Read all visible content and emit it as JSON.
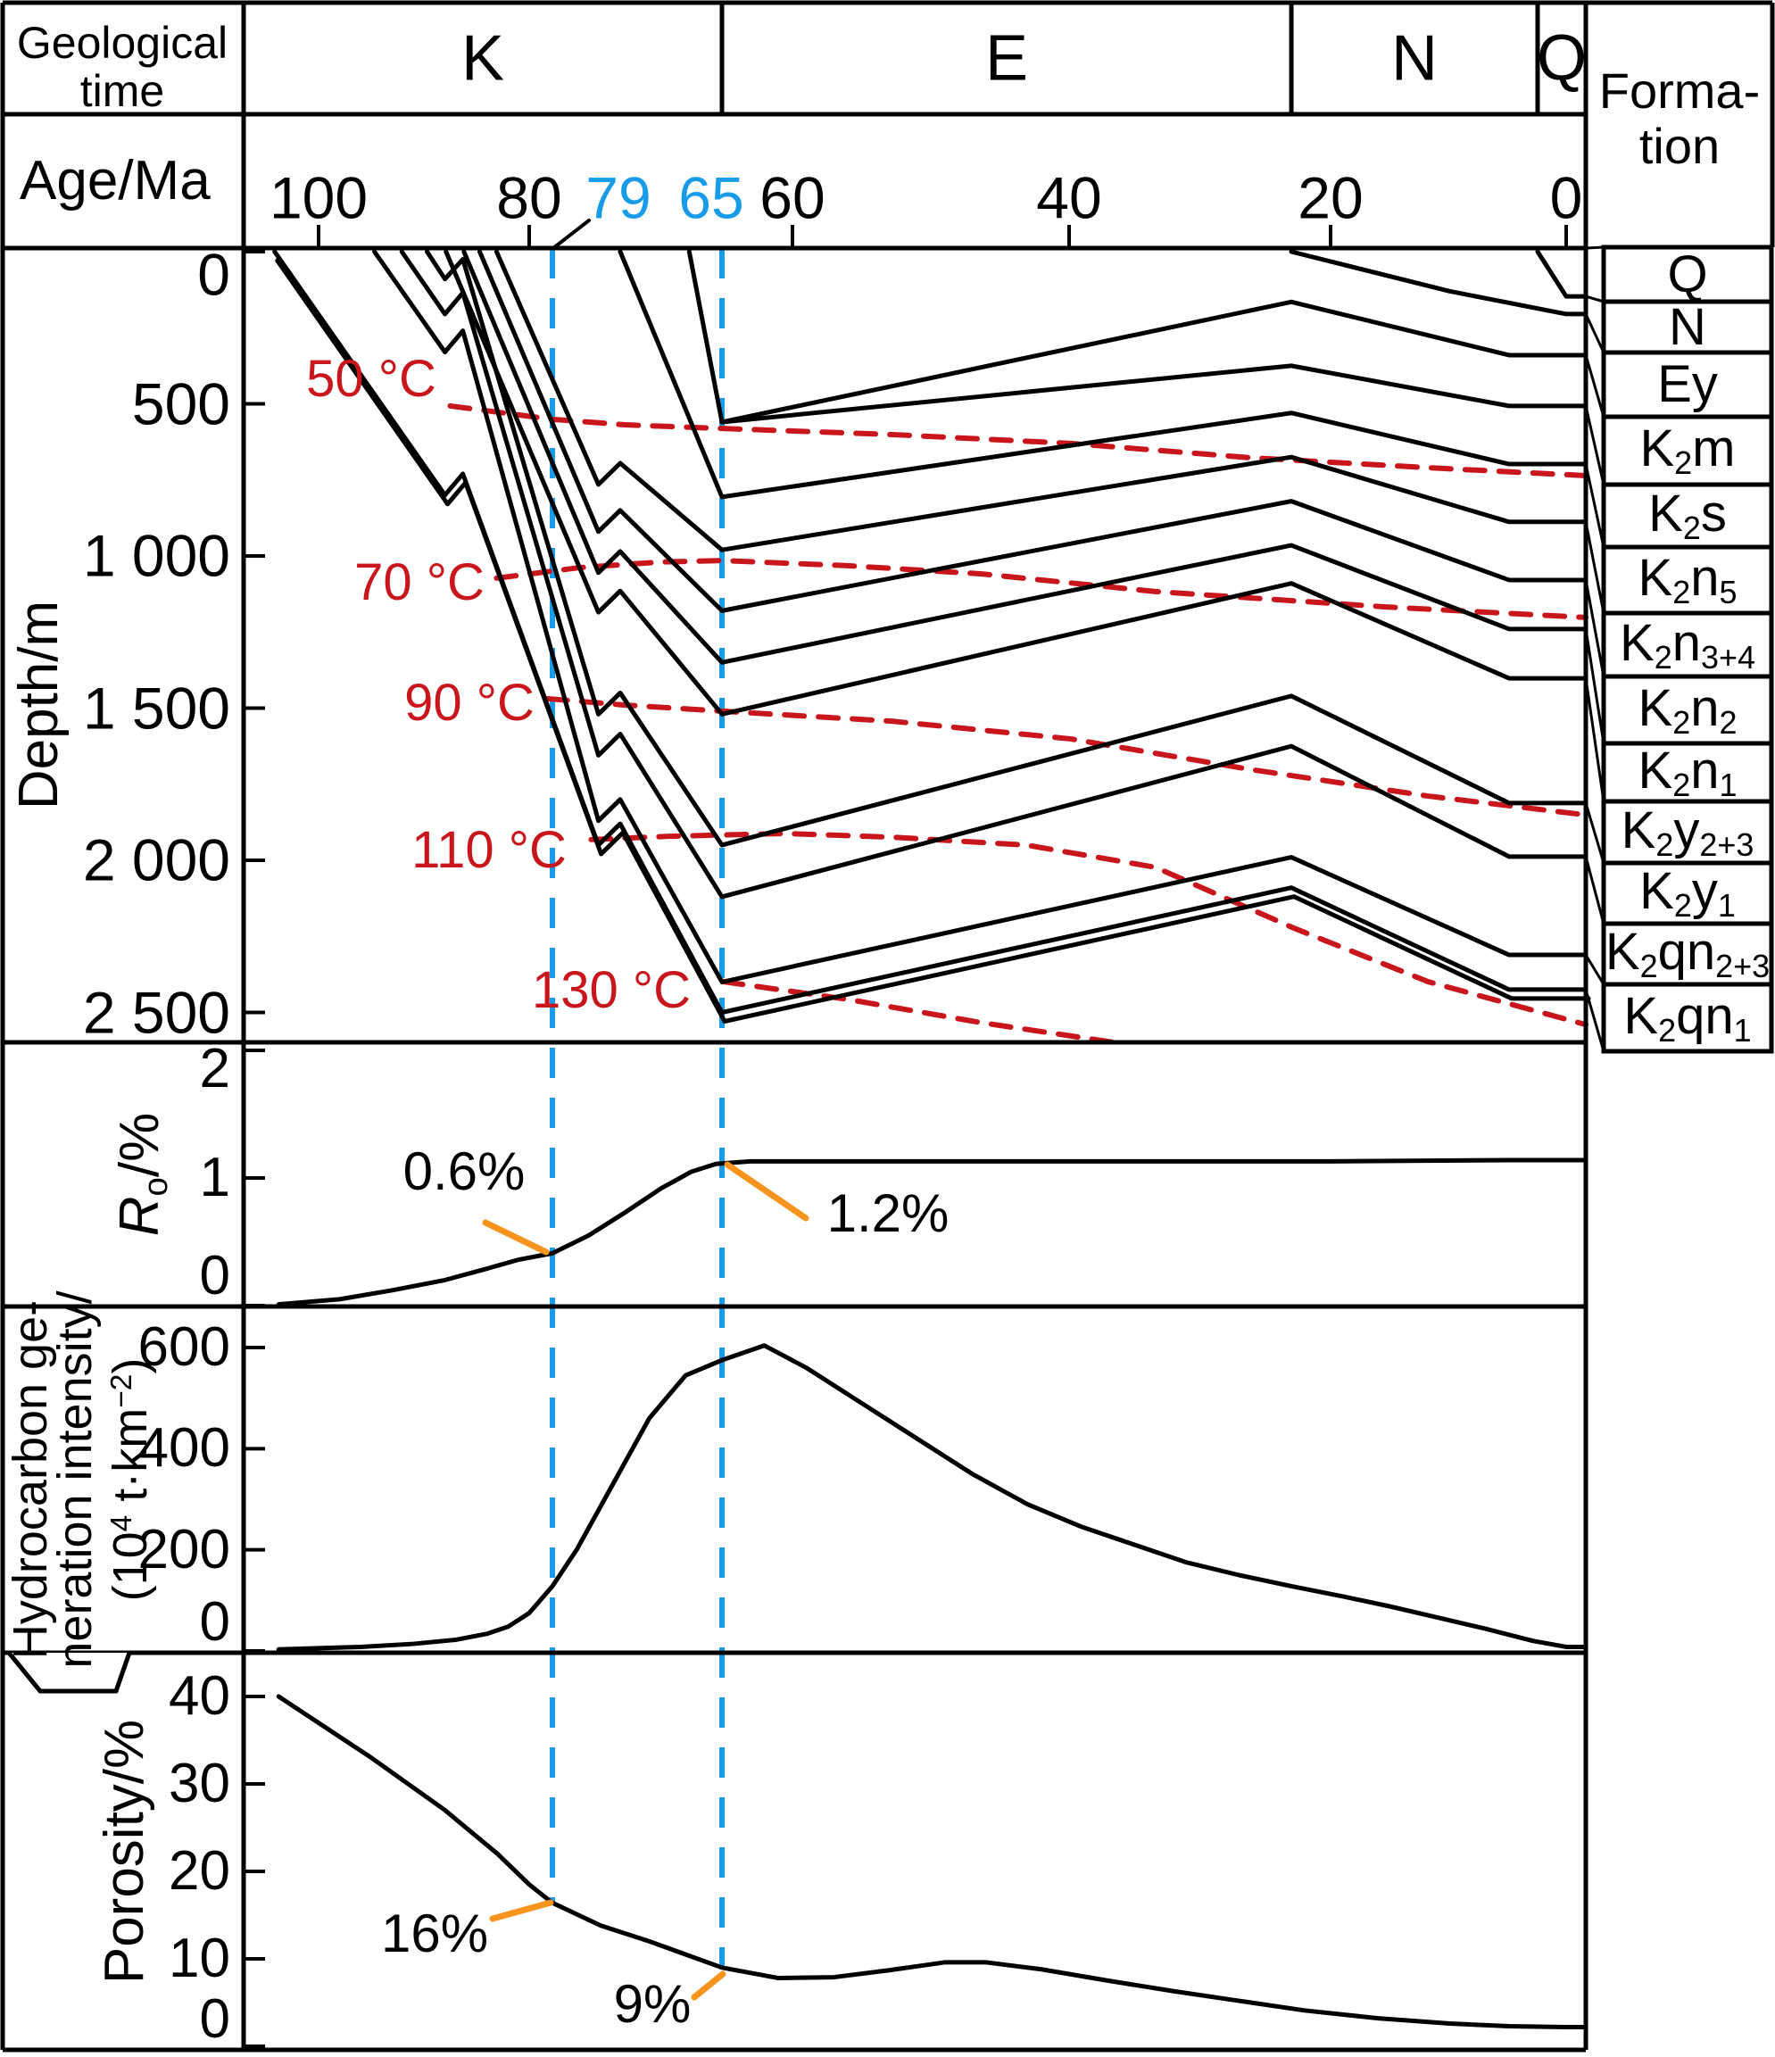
{
  "colors": {
    "blue": "#189CE9",
    "red": "#C9161D",
    "orange": "#F7941E",
    "black": "#000000"
  },
  "header": {
    "geological_time_line1": "Geological",
    "geological_time_line2": "time",
    "age_label": "Age/Ma",
    "formation_line1": "Forma-",
    "formation_line2": "tion",
    "periods": [
      {
        "label": "K",
        "start_age": 107.5,
        "end_age": 65
      },
      {
        "label": "E",
        "start_age": 65,
        "end_age": 23
      },
      {
        "label": "N",
        "start_age": 23,
        "end_age": 2.6
      },
      {
        "label": "Q",
        "start_age": 2.6,
        "end_age": -1.5
      }
    ]
  },
  "chart_data": {
    "type": "line",
    "age_axis": {
      "label": "Age/Ma",
      "ticks": [
        100,
        80,
        60,
        40,
        20,
        0
      ],
      "range": [
        107.5,
        -1.5
      ]
    },
    "event_markers": [
      {
        "age": 79,
        "label": "79",
        "line_bottom_y": 2132,
        "pointer": [
          [
            660,
            247
          ],
          [
            620,
            278
          ]
        ]
      },
      {
        "age": 65,
        "label": "65",
        "line_bottom_y": 2205,
        "pointer": null
      }
    ],
    "burial_panel": {
      "y_label": "Depth/m",
      "depth_ticks": [
        0,
        500,
        1000,
        1500,
        2000,
        2500
      ],
      "depth_tick_labels": [
        "0",
        "500",
        "1 000",
        "1 500",
        "2 000",
        "2 500"
      ],
      "formations": [
        {
          "name": "Q",
          "label_runs": [
            "Q"
          ],
          "base_curve": [
            [
              2.6,
              0
            ],
            [
              0,
              147
            ]
          ]
        },
        {
          "name": "N",
          "label_runs": [
            "N"
          ],
          "base_curve": [
            [
              23,
              0
            ],
            [
              10,
              130
            ],
            [
              0,
              205
            ]
          ]
        },
        {
          "name": "Ey",
          "label_runs": [
            "Ey"
          ],
          "base_curve": [
            [
              65,
              560
            ],
            [
              23,
              165
            ],
            [
              5,
              340
            ],
            [
              0,
              340
            ]
          ]
        },
        {
          "name": "K2m",
          "label_runs": [
            "K",
            {
              "sub": "2"
            },
            "m"
          ],
          "base_curve": [
            [
              67.7,
              0
            ],
            [
              65,
              560
            ],
            [
              23,
              375
            ],
            [
              5,
              507
            ],
            [
              0,
              507
            ]
          ]
        },
        {
          "name": "K2s",
          "label_runs": [
            "K",
            {
              "sub": "2"
            },
            "s"
          ],
          "base_curve": [
            [
              73.4,
              0
            ],
            [
              65,
              806
            ],
            [
              23,
              530
            ],
            [
              5,
              698
            ],
            [
              0,
              698
            ]
          ]
        },
        {
          "name": "K2n5",
          "label_runs": [
            "K",
            {
              "sub": "2"
            },
            "n",
            {
              "sub": "5"
            }
          ],
          "base_curve": [
            [
              83.1,
              0
            ],
            [
              75.2,
              765
            ],
            [
              73.4,
              695
            ],
            [
              65,
              980
            ],
            [
              23,
              675
            ],
            [
              5,
              888
            ],
            [
              0,
              888
            ]
          ]
        },
        {
          "name": "K2n3+4",
          "label_runs": [
            "K",
            {
              "sub": "2"
            },
            "n",
            {
              "sub": "3+4"
            }
          ],
          "base_curve": [
            [
              84.7,
              0
            ],
            [
              75.2,
              920
            ],
            [
              73.4,
              850
            ],
            [
              65,
              1180
            ],
            [
              23,
              820
            ],
            [
              5,
              1079
            ],
            [
              0,
              1079
            ]
          ]
        },
        {
          "name": "K2n2",
          "label_runs": [
            "K",
            {
              "sub": "2"
            },
            "n",
            {
              "sub": "2"
            }
          ],
          "base_curve": [
            [
              86.2,
              0
            ],
            [
              75.2,
              1055
            ],
            [
              73.4,
              985
            ],
            [
              65,
              1350
            ],
            [
              23,
              965
            ],
            [
              5,
              1240
            ],
            [
              0,
              1240
            ]
          ]
        },
        {
          "name": "K2n1",
          "label_runs": [
            "K",
            {
              "sub": "2"
            },
            "n",
            {
              "sub": "1"
            }
          ],
          "base_curve": [
            [
              87.9,
              0
            ],
            [
              75.2,
              1185
            ],
            [
              73.4,
              1115
            ],
            [
              65,
              1520
            ],
            [
              23,
              1090
            ],
            [
              5,
              1402
            ],
            [
              0,
              1402
            ]
          ]
        },
        {
          "name": "K2y2+3",
          "label_runs": [
            "K",
            {
              "sub": "2"
            },
            "y",
            {
              "sub": "2+3"
            }
          ],
          "base_curve": [
            [
              89.7,
              0
            ],
            [
              88,
              90
            ],
            [
              86.3,
              25
            ],
            [
              75.2,
              1520
            ],
            [
              73.4,
              1450
            ],
            [
              65,
              1950
            ],
            [
              23,
              1460
            ],
            [
              5,
              1812
            ],
            [
              0,
              1812
            ]
          ]
        },
        {
          "name": "K2y1",
          "label_runs": [
            "K",
            {
              "sub": "2"
            },
            "y",
            {
              "sub": "1"
            }
          ],
          "base_curve": [
            [
              92.1,
              0
            ],
            [
              88,
              205
            ],
            [
              86.3,
              135
            ],
            [
              75.2,
              1655
            ],
            [
              73.4,
              1585
            ],
            [
              65,
              2120
            ],
            [
              23,
              1625
            ],
            [
              5,
              1988
            ],
            [
              0,
              1988
            ]
          ]
        },
        {
          "name": "K2qn2+3",
          "label_runs": [
            "K",
            {
              "sub": "2"
            },
            "qn",
            {
              "sub": "2+3"
            }
          ],
          "base_curve": [
            [
              94.7,
              0
            ],
            [
              88,
              330
            ],
            [
              86.3,
              260
            ],
            [
              75.2,
              1870
            ],
            [
              73.4,
              1800
            ],
            [
              65,
              2400
            ],
            [
              23,
              1990
            ],
            [
              5,
              2311
            ],
            [
              0,
              2311
            ]
          ]
        },
        {
          "name": "K2qn1",
          "label_runs": [
            "K",
            {
              "sub": "2"
            },
            "qn",
            {
              "sub": "1"
            }
          ],
          "double_line": true,
          "base_curve": [
            [
              104.4,
              0
            ],
            [
              88,
              800
            ],
            [
              86.3,
              730
            ],
            [
              75.2,
              1950
            ],
            [
              73.4,
              1880
            ],
            [
              65,
              2500
            ],
            [
              23,
              2090
            ],
            [
              5,
              2425
            ],
            [
              0,
              2425
            ]
          ]
        }
      ],
      "isotherms": [
        {
          "label": "50 °C",
          "label_center": [
            416,
            425
          ],
          "points": [
            [
              87.5,
              507
            ],
            [
              79,
              551
            ],
            [
              73,
              569
            ],
            [
              65,
              581
            ],
            [
              52.8,
              601
            ],
            [
              39.9,
              630
            ],
            [
              26.2,
              677
            ],
            [
              11.8,
              710
            ],
            [
              -1.5,
              736
            ]
          ]
        },
        {
          "label": "70 °C",
          "label_center": [
            470,
            653
          ],
          "points": [
            [
              83.1,
              1073
            ],
            [
              76.7,
              1038
            ],
            [
              70.1,
              1020
            ],
            [
              65,
              1015
            ],
            [
              56,
              1032
            ],
            [
              46.3,
              1059
            ],
            [
              33.4,
              1117
            ],
            [
              15.5,
              1167
            ],
            [
              -1.5,
              1202
            ]
          ]
        },
        {
          "label": "90 °C",
          "label_center": [
            526,
            788
          ],
          "points": [
            [
              79.2,
              1469
            ],
            [
              73,
              1490
            ],
            [
              65,
              1510
            ],
            [
              52.8,
              1543
            ],
            [
              39.9,
              1601
            ],
            [
              26.2,
              1701
            ],
            [
              11.8,
              1789
            ],
            [
              -1.5,
              1851
            ]
          ]
        },
        {
          "label": "110 °C",
          "label_center": [
            548,
            953
          ],
          "points": [
            [
              75.8,
              1932
            ],
            [
              69.3,
              1921
            ],
            [
              60.5,
              1912
            ],
            [
              52.8,
              1924
            ],
            [
              43.1,
              1950
            ],
            [
              33.4,
              2023
            ],
            [
              22.8,
              2223
            ],
            [
              11.8,
              2399
            ],
            [
              -1.5,
              2540
            ]
          ]
        },
        {
          "label": "130 °C",
          "label_center": [
            685,
            1110
          ],
          "points": [
            [
              64.9,
              2399
            ],
            [
              56,
              2457
            ],
            [
              46.3,
              2534
            ],
            [
              36.6,
              2598
            ]
          ]
        }
      ]
    },
    "ro_panel": {
      "y_label_runs": [
        {
          "i": "R"
        },
        {
          "sub": "o"
        },
        "/%"
      ],
      "ticks": [
        0,
        1,
        2
      ],
      "series": [
        [
          104,
          0.01
        ],
        [
          98,
          0.05
        ],
        [
          93,
          0.12
        ],
        [
          88,
          0.2
        ],
        [
          84,
          0.29
        ],
        [
          81,
          0.36
        ],
        [
          79,
          0.41
        ],
        [
          76,
          0.55
        ],
        [
          73,
          0.73
        ],
        [
          70,
          0.92
        ],
        [
          67.5,
          1.05
        ],
        [
          65.5,
          1.11
        ],
        [
          63,
          1.13
        ],
        [
          40,
          1.13
        ],
        [
          20,
          1.13
        ],
        [
          5,
          1.14
        ],
        [
          0,
          1.14
        ]
      ],
      "annotations": [
        {
          "text": "0.6%",
          "center": [
            520,
            1313
          ],
          "leader": [
            [
              544,
              1370
            ],
            [
              612,
              1403
            ]
          ]
        },
        {
          "text": "1.2%",
          "center": [
            995,
            1360
          ],
          "leader": [
            [
              815,
              1305
            ],
            [
              903,
              1365
            ]
          ]
        }
      ]
    },
    "hc_panel": {
      "y_label_lines": [
        "Hydrocarbon ge-",
        "neration intensity/"
      ],
      "y_unit_runs": [
        "(10",
        {
          "sup": "4"
        },
        " t·km",
        {
          "sup": "−2"
        },
        ")"
      ],
      "ticks": [
        0,
        200,
        400,
        600
      ],
      "series": [
        [
          104,
          3
        ],
        [
          96,
          8
        ],
        [
          91,
          14
        ],
        [
          87,
          22
        ],
        [
          84,
          34
        ],
        [
          82,
          48
        ],
        [
          80,
          75
        ],
        [
          79,
          128
        ],
        [
          77,
          200
        ],
        [
          74,
          330
        ],
        [
          71,
          460
        ],
        [
          68,
          545
        ],
        [
          65,
          575
        ],
        [
          62,
          604
        ],
        [
          59,
          560
        ],
        [
          55,
          490
        ],
        [
          51,
          420
        ],
        [
          47,
          350
        ],
        [
          43,
          290
        ],
        [
          39,
          245
        ],
        [
          35,
          210
        ],
        [
          31,
          175
        ],
        [
          27,
          150
        ],
        [
          23,
          128
        ],
        [
          19,
          108
        ],
        [
          15,
          88
        ],
        [
          11,
          66
        ],
        [
          7,
          44
        ],
        [
          3,
          20
        ],
        [
          0,
          8
        ]
      ]
    },
    "por_panel": {
      "y_label": "Porosity/%",
      "ticks": [
        0,
        10,
        20,
        30,
        40
      ],
      "series": [
        [
          104,
          40
        ],
        [
          95,
          33
        ],
        [
          88,
          27
        ],
        [
          83,
          22
        ],
        [
          80,
          18.5
        ],
        [
          79,
          16.4
        ],
        [
          75,
          13.8
        ],
        [
          71,
          12
        ],
        [
          68,
          10.5
        ],
        [
          65,
          9
        ],
        [
          61,
          7.8
        ],
        [
          57,
          7.9
        ],
        [
          53,
          8.7
        ],
        [
          49,
          9.6
        ],
        [
          46,
          9.6
        ],
        [
          42,
          8.8
        ],
        [
          37,
          7.5
        ],
        [
          32,
          6.3
        ],
        [
          27,
          5.2
        ],
        [
          22,
          4.1
        ],
        [
          16,
          3.2
        ],
        [
          10,
          2.6
        ],
        [
          5,
          2.3
        ],
        [
          0,
          2.2
        ]
      ],
      "annotations": [
        {
          "text": "16%",
          "center": [
            487,
            2167
          ],
          "leader": [
            [
              552,
              2150
            ],
            [
              617,
              2132
            ]
          ]
        },
        {
          "text": "9%",
          "center": [
            731,
            2246
          ],
          "leader": [
            [
              778,
              2238
            ],
            [
              810,
              2212
            ]
          ]
        }
      ]
    }
  }
}
